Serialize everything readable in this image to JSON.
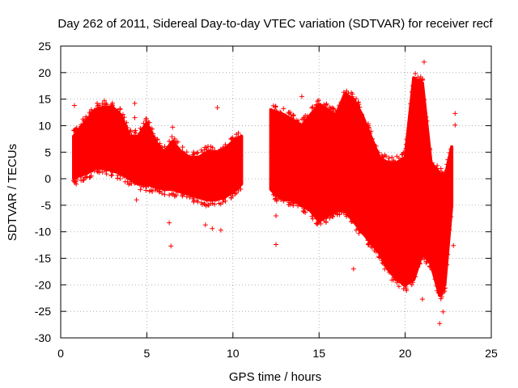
{
  "chart_data": {
    "type": "scatter",
    "title": "Day 262 of 2011, Sidereal Day-to-day VTEC variation (SDTVAR) for receiver recf",
    "xlabel": "GPS time / hours",
    "ylabel": "SDTVAR / TECUs",
    "xlim": [
      0,
      25
    ],
    "ylim": [
      -30,
      25
    ],
    "x_ticks": [
      0,
      5,
      10,
      15,
      20,
      25
    ],
    "y_ticks": [
      -30,
      -25,
      -20,
      -15,
      -10,
      -5,
      0,
      5,
      10,
      15,
      20,
      25
    ],
    "grid": true,
    "legend": "none",
    "marker": "plus",
    "colors": {
      "series": "#ff0000",
      "axis": "#000000",
      "grid": "#a0a0a0"
    },
    "series": [
      {
        "name": "SDTVAR",
        "envelope": [
          {
            "x": 0.75,
            "lo": 0,
            "hi": 8
          },
          {
            "x": 1.0,
            "lo": 0.5,
            "hi": 9
          },
          {
            "x": 1.5,
            "lo": 1,
            "hi": 11
          },
          {
            "x": 2.0,
            "lo": 2,
            "hi": 13
          },
          {
            "x": 2.5,
            "lo": 2,
            "hi": 13.5
          },
          {
            "x": 3.0,
            "lo": 1.5,
            "hi": 13.5
          },
          {
            "x": 3.5,
            "lo": 1,
            "hi": 12
          },
          {
            "x": 4.0,
            "lo": 0,
            "hi": 8
          },
          {
            "x": 4.5,
            "lo": -1,
            "hi": 8
          },
          {
            "x": 5.0,
            "lo": -1,
            "hi": 10.5
          },
          {
            "x": 5.5,
            "lo": -1.5,
            "hi": 7
          },
          {
            "x": 6.0,
            "lo": -2,
            "hi": 5
          },
          {
            "x": 6.5,
            "lo": -2,
            "hi": 7
          },
          {
            "x": 7.0,
            "lo": -2.5,
            "hi": 5
          },
          {
            "x": 7.5,
            "lo": -3,
            "hi": 4
          },
          {
            "x": 8.0,
            "lo": -3.5,
            "hi": 4
          },
          {
            "x": 8.5,
            "lo": -4,
            "hi": 5
          },
          {
            "x": 9.0,
            "lo": -4,
            "hi": 5
          },
          {
            "x": 9.5,
            "lo": -3.5,
            "hi": 5.5
          },
          {
            "x": 10.0,
            "lo": -2.5,
            "hi": 7
          },
          {
            "x": 10.5,
            "lo": -1,
            "hi": 8
          },
          {
            "x": 12.2,
            "lo": -2,
            "hi": 13
          },
          {
            "x": 12.5,
            "lo": -3,
            "hi": 12.5
          },
          {
            "x": 13.0,
            "lo": -4,
            "hi": 12
          },
          {
            "x": 13.5,
            "lo": -4,
            "hi": 11
          },
          {
            "x": 14.0,
            "lo": -5,
            "hi": 10
          },
          {
            "x": 14.5,
            "lo": -6,
            "hi": 12
          },
          {
            "x": 15.0,
            "lo": -8,
            "hi": 14
          },
          {
            "x": 15.5,
            "lo": -7,
            "hi": 13
          },
          {
            "x": 16.0,
            "lo": -6,
            "hi": 12
          },
          {
            "x": 16.5,
            "lo": -6,
            "hi": 16
          },
          {
            "x": 17.0,
            "lo": -8,
            "hi": 15
          },
          {
            "x": 17.5,
            "lo": -10,
            "hi": 12
          },
          {
            "x": 18.0,
            "lo": -12,
            "hi": 8
          },
          {
            "x": 18.5,
            "lo": -14,
            "hi": 4
          },
          {
            "x": 19.0,
            "lo": -17,
            "hi": 3
          },
          {
            "x": 19.5,
            "lo": -19,
            "hi": 3
          },
          {
            "x": 20.0,
            "lo": -20,
            "hi": 4
          },
          {
            "x": 20.5,
            "lo": -19,
            "hi": 19
          },
          {
            "x": 21.0,
            "lo": -14,
            "hi": 18
          },
          {
            "x": 21.5,
            "lo": -16,
            "hi": 3
          },
          {
            "x": 22.0,
            "lo": -22,
            "hi": 1
          },
          {
            "x": 22.3,
            "lo": -20,
            "hi": 0
          },
          {
            "x": 22.7,
            "lo": -5,
            "hi": 6
          }
        ],
        "outliers": [
          [
            0.8,
            13.8
          ],
          [
            0.9,
            -1
          ],
          [
            4.3,
            14.2
          ],
          [
            4.3,
            11.5
          ],
          [
            4.4,
            -4
          ],
          [
            6.3,
            -8.3
          ],
          [
            6.4,
            -12.7
          ],
          [
            6.5,
            9.7
          ],
          [
            8.4,
            -8.7
          ],
          [
            8.8,
            -9.4
          ],
          [
            9.1,
            13.4
          ],
          [
            9.3,
            -9.7
          ],
          [
            12.5,
            -7
          ],
          [
            12.5,
            -12.4
          ],
          [
            14.0,
            15.5
          ],
          [
            20.9,
            19.2
          ],
          [
            21.0,
            -22.7
          ],
          [
            21.1,
            22
          ],
          [
            22.0,
            -27.3
          ],
          [
            22.2,
            -25.1
          ],
          [
            22.9,
            12.3
          ],
          [
            22.9,
            10.1
          ],
          [
            22.8,
            -12.6
          ],
          [
            17.0,
            -17
          ]
        ]
      }
    ]
  }
}
